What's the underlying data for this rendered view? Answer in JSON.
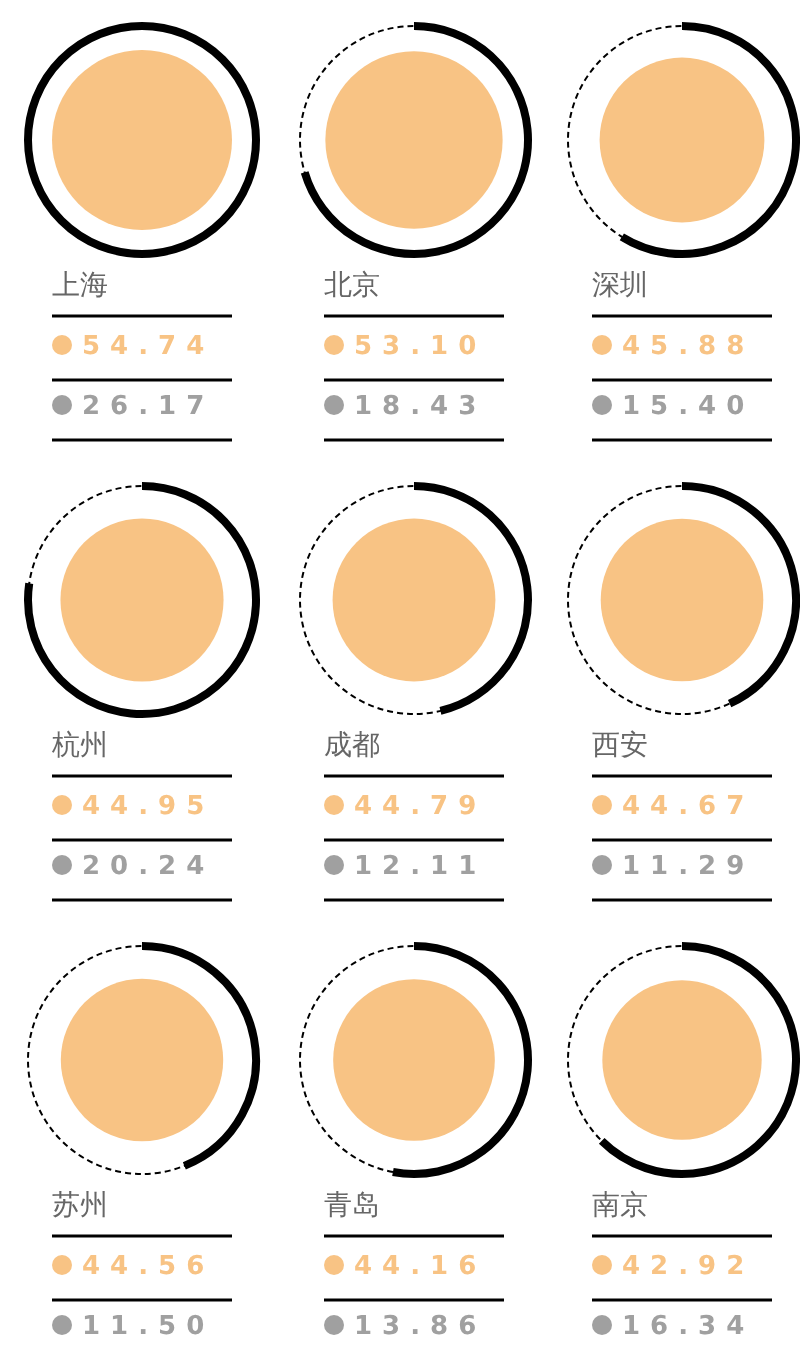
{
  "chart_data": {
    "type": "other",
    "categories": [
      "上海",
      "北京",
      "深圳",
      "杭州",
      "成都",
      "西安",
      "苏州",
      "青岛",
      "南京"
    ],
    "series": [
      {
        "color": "#f8c384",
        "values": [
          54.74,
          53.1,
          45.88,
          44.95,
          44.79,
          44.67,
          44.56,
          44.16,
          42.92
        ],
        "value_labels": [
          "54.74",
          "53.10",
          "45.88",
          "44.95",
          "44.79",
          "44.67",
          "44.56",
          "44.16",
          "42.92"
        ]
      },
      {
        "color": "#a0a0a0",
        "values": [
          26.17,
          18.43,
          15.4,
          20.24,
          12.11,
          11.29,
          11.5,
          13.86,
          16.34
        ],
        "value_labels": [
          "26.17",
          "18.43",
          "15.40",
          "20.24",
          "12.11",
          "11.29",
          "11.50",
          "13.86",
          "16.34"
        ]
      }
    ]
  }
}
